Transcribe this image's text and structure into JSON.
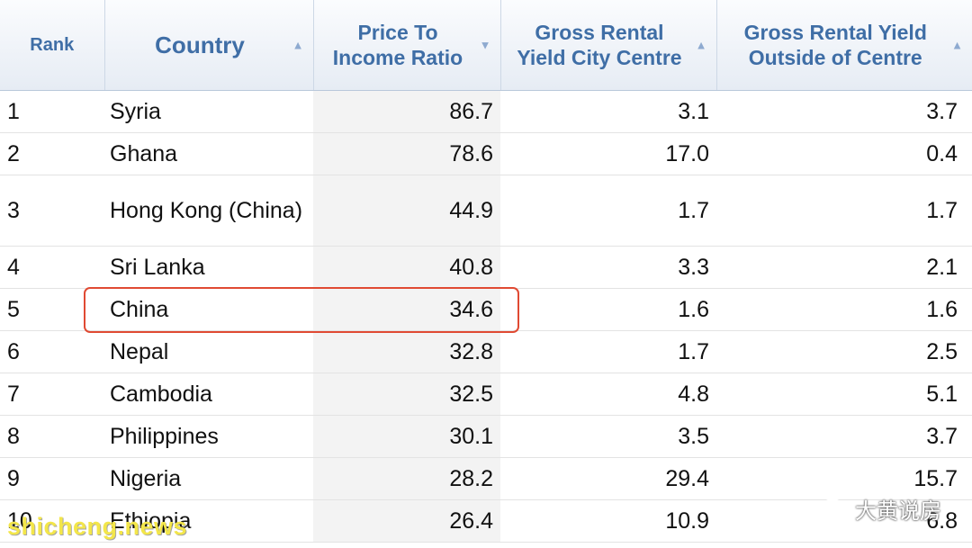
{
  "table": {
    "columns": [
      {
        "label": "Rank"
      },
      {
        "label": "Country"
      },
      {
        "label": "Price To Income Ratio"
      },
      {
        "label": "Gross Rental Yield City Centre"
      },
      {
        "label": "Gross Rental Yield Outside of Centre"
      }
    ],
    "rows": [
      {
        "rank": "1",
        "country": "Syria",
        "price_to_income": "86.7",
        "yield_city": "3.1",
        "yield_outside": "3.7"
      },
      {
        "rank": "2",
        "country": "Ghana",
        "price_to_income": "78.6",
        "yield_city": "17.0",
        "yield_outside": "0.4"
      },
      {
        "rank": "3",
        "country": "Hong Kong (China)",
        "price_to_income": "44.9",
        "yield_city": "1.7",
        "yield_outside": "1.7"
      },
      {
        "rank": "4",
        "country": "Sri Lanka",
        "price_to_income": "40.8",
        "yield_city": "3.3",
        "yield_outside": "2.1"
      },
      {
        "rank": "5",
        "country": "China",
        "price_to_income": "34.6",
        "yield_city": "1.6",
        "yield_outside": "1.6"
      },
      {
        "rank": "6",
        "country": "Nepal",
        "price_to_income": "32.8",
        "yield_city": "1.7",
        "yield_outside": "2.5"
      },
      {
        "rank": "7",
        "country": "Cambodia",
        "price_to_income": "32.5",
        "yield_city": "4.8",
        "yield_outside": "5.1"
      },
      {
        "rank": "8",
        "country": "Philippines",
        "price_to_income": "30.1",
        "yield_city": "3.5",
        "yield_outside": "3.7"
      },
      {
        "rank": "9",
        "country": "Nigeria",
        "price_to_income": "28.2",
        "yield_city": "29.4",
        "yield_outside": "15.7"
      },
      {
        "rank": "10",
        "country": "Ethiopia",
        "price_to_income": "26.4",
        "yield_city": "10.9",
        "yield_outside": "6.8"
      }
    ]
  },
  "icons": {
    "sort_up": "▲",
    "sort_down": "▼"
  },
  "watermarks": {
    "left": "shicheng.news",
    "right": "大黄说房"
  },
  "colors": {
    "header_text": "#3f6ea6",
    "highlight": "#e04a33"
  }
}
